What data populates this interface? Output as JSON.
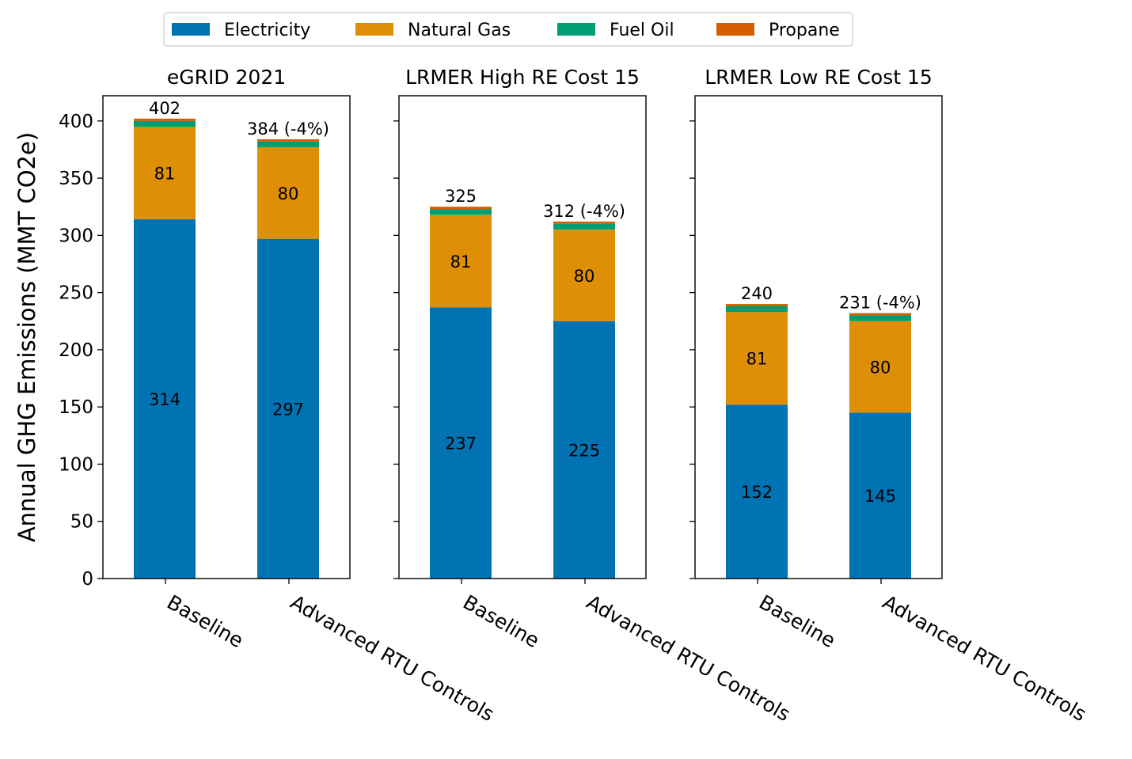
{
  "legend": {
    "placement": "top-center",
    "entries": [
      {
        "label": "Electricity",
        "color": "#0173b2"
      },
      {
        "label": "Natural Gas",
        "color": "#de8f05"
      },
      {
        "label": "Fuel Oil",
        "color": "#029e73"
      },
      {
        "label": "Propane",
        "color": "#d55e00"
      }
    ]
  },
  "ylabel": "Annual GHG Emissions (MMT CO2e)",
  "chart_data": [
    {
      "type": "bar",
      "stacked": true,
      "title": "eGRID 2021",
      "categories": [
        "Baseline",
        "Advanced RTU Controls"
      ],
      "ylim": [
        0,
        422
      ],
      "yticks": [
        0,
        50,
        100,
        150,
        200,
        250,
        300,
        350,
        400
      ],
      "series": [
        {
          "name": "Electricity",
          "values": [
            314,
            297
          ],
          "labels": [
            "314",
            "297"
          ]
        },
        {
          "name": "Natural Gas",
          "values": [
            81,
            80
          ],
          "labels": [
            "81",
            "80"
          ]
        },
        {
          "name": "Fuel Oil",
          "values": [
            5,
            5
          ]
        },
        {
          "name": "Propane",
          "values": [
            2,
            2
          ]
        }
      ],
      "totals": [
        "402",
        "384 (-4%)"
      ]
    },
    {
      "type": "bar",
      "stacked": true,
      "title": "LRMER High RE Cost 15",
      "categories": [
        "Baseline",
        "Advanced RTU Controls"
      ],
      "ylim": [
        0,
        422
      ],
      "series": [
        {
          "name": "Electricity",
          "values": [
            237,
            225
          ],
          "labels": [
            "237",
            "225"
          ]
        },
        {
          "name": "Natural Gas",
          "values": [
            81,
            80
          ],
          "labels": [
            "81",
            "80"
          ]
        },
        {
          "name": "Fuel Oil",
          "values": [
            5,
            5
          ]
        },
        {
          "name": "Propane",
          "values": [
            2,
            2
          ]
        }
      ],
      "totals": [
        "325",
        "312 (-4%)"
      ]
    },
    {
      "type": "bar",
      "stacked": true,
      "title": "LRMER Low RE Cost 15",
      "categories": [
        "Baseline",
        "Advanced RTU Controls"
      ],
      "ylim": [
        0,
        422
      ],
      "series": [
        {
          "name": "Electricity",
          "values": [
            152,
            145
          ],
          "labels": [
            "152",
            "145"
          ]
        },
        {
          "name": "Natural Gas",
          "values": [
            81,
            80
          ],
          "labels": [
            "81",
            "80"
          ]
        },
        {
          "name": "Fuel Oil",
          "values": [
            5,
            5
          ]
        },
        {
          "name": "Propane",
          "values": [
            2,
            2
          ]
        }
      ],
      "totals": [
        "240",
        "231 (-4%)"
      ]
    }
  ]
}
